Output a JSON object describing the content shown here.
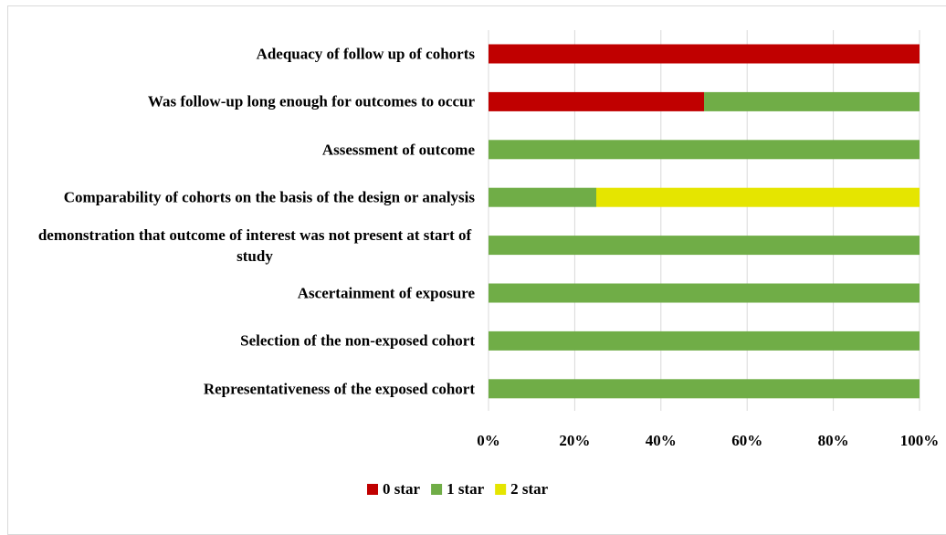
{
  "chart_data": {
    "type": "stacked-bar-horizontal",
    "categories": [
      "Adequacy of follow up of cohorts",
      "Was follow-up long enough for outcomes to occur",
      "Assessment of outcome",
      "Comparability of cohorts on the basis of the design or analysis",
      "demonstration that outcome of interest was not present at start of study",
      "Ascertainment of exposure",
      "Selection of the non-exposed cohort",
      "Representativeness of the exposed cohort"
    ],
    "series": [
      {
        "name": "0 star",
        "color": "#c00000",
        "values": [
          100,
          50,
          0,
          0,
          0,
          0,
          0,
          0
        ]
      },
      {
        "name": "1 star",
        "color": "#70ad47",
        "values": [
          0,
          50,
          100,
          25,
          100,
          100,
          100,
          100
        ]
      },
      {
        "name": "2 star",
        "color": "#e5e500",
        "values": [
          0,
          0,
          0,
          75,
          0,
          0,
          0,
          0
        ]
      }
    ],
    "xlim": [
      0,
      100
    ],
    "xticks": [
      {
        "value": 0,
        "label": "0%"
      },
      {
        "value": 20,
        "label": "20%"
      },
      {
        "value": 40,
        "label": "40%"
      },
      {
        "value": 60,
        "label": "60%"
      },
      {
        "value": 80,
        "label": "80%"
      },
      {
        "value": 100,
        "label": "100%"
      }
    ],
    "grid": true
  }
}
